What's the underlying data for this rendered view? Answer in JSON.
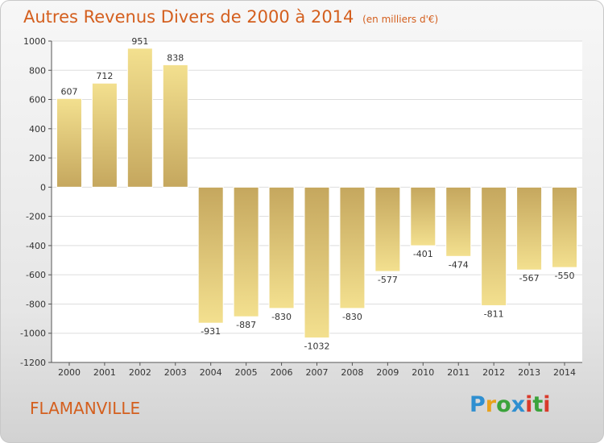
{
  "header": {
    "title": "Autres Revenus Divers de 2000 à 2014",
    "unit_note": "(en milliers d'€)"
  },
  "footer": {
    "commune": "FLAMANVILLE",
    "brand": "Proxiti"
  },
  "colors": {
    "title": "#d45f1e",
    "bar_light": "#f3e08f",
    "bar_dark": "#c5a75e",
    "grid": "#dddddd"
  },
  "chart_data": {
    "type": "bar",
    "title": "Autres Revenus Divers de 2000 à 2014",
    "subtitle": "(en milliers d'€)",
    "categories": [
      "2000",
      "2001",
      "2002",
      "2003",
      "2004",
      "2005",
      "2006",
      "2007",
      "2008",
      "2009",
      "2010",
      "2011",
      "2012",
      "2013",
      "2014"
    ],
    "values": [
      607,
      712,
      951,
      838,
      -931,
      -887,
      -830,
      -1032,
      -830,
      -577,
      -401,
      -474,
      -811,
      -567,
      -550
    ],
    "ylim": [
      -1200,
      1000
    ],
    "yticks": [
      1000,
      800,
      600,
      400,
      200,
      0,
      -200,
      -400,
      -600,
      -800,
      -1000,
      -1200
    ],
    "grid": true,
    "data_labels": true
  }
}
